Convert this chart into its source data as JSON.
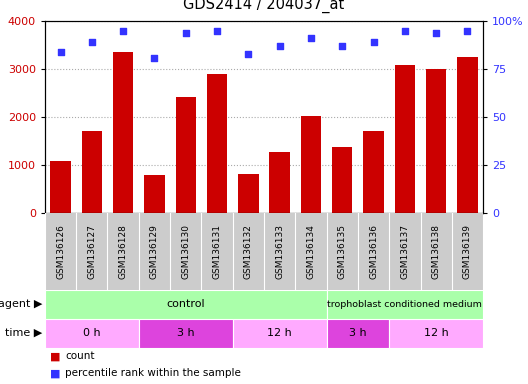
{
  "title": "GDS2414 / 204037_at",
  "samples": [
    "GSM136126",
    "GSM136127",
    "GSM136128",
    "GSM136129",
    "GSM136130",
    "GSM136131",
    "GSM136132",
    "GSM136133",
    "GSM136134",
    "GSM136135",
    "GSM136136",
    "GSM136137",
    "GSM136138",
    "GSM136139"
  ],
  "counts": [
    1080,
    1720,
    3350,
    800,
    2420,
    2890,
    820,
    1270,
    2030,
    1380,
    1720,
    3080,
    3000,
    3250
  ],
  "percentiles": [
    84,
    89,
    95,
    81,
    94,
    95,
    83,
    87,
    91,
    87,
    89,
    95,
    94,
    95
  ],
  "ylim_left": [
    0,
    4000
  ],
  "ylim_right": [
    0,
    100
  ],
  "yticks_left": [
    0,
    1000,
    2000,
    3000,
    4000
  ],
  "yticks_right": [
    0,
    25,
    50,
    75,
    100
  ],
  "yticklabels_right": [
    "0",
    "25",
    "50",
    "75",
    "100%"
  ],
  "bar_color": "#cc0000",
  "dot_color": "#3333ff",
  "label_bg_color": "#cccccc",
  "agent_color": "#aaffaa",
  "time_colors": [
    "#ffaaff",
    "#dd44dd",
    "#ffaaff",
    "#dd44dd",
    "#ffaaff"
  ],
  "time_groups": [
    {
      "label": "0 h",
      "start": 0,
      "end": 3
    },
    {
      "label": "3 h",
      "start": 3,
      "end": 6
    },
    {
      "label": "12 h",
      "start": 6,
      "end": 9
    },
    {
      "label": "3 h",
      "start": 9,
      "end": 11
    },
    {
      "label": "12 h",
      "start": 11,
      "end": 14
    }
  ],
  "legend_count_color": "#cc0000",
  "legend_pct_color": "#3333ff",
  "grid_color": "#aaaaaa"
}
